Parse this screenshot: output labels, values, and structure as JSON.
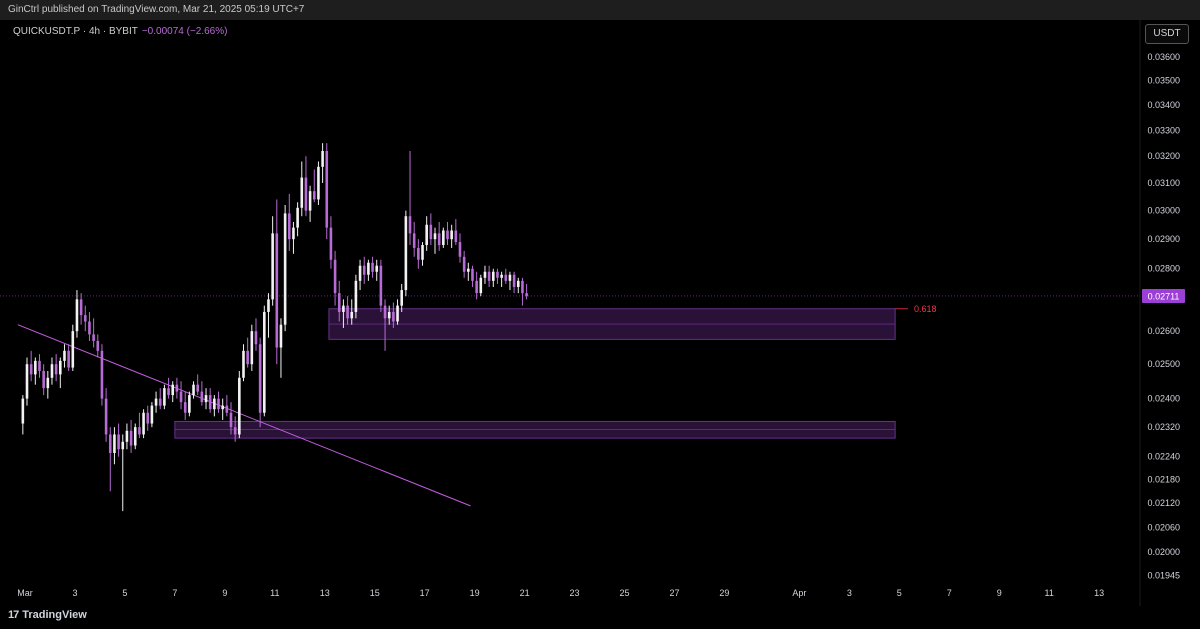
{
  "header": {
    "published_text": "GinCtrl published on TradingView.com, Mar 21, 2025 05:19 UTC+7"
  },
  "legend": {
    "symbol": "QUICKUSDT.P · 4h · BYBIT",
    "change": "−0.00074 (−2.66%)"
  },
  "currency_button": "USDT",
  "branding": {
    "logo_mark": "17",
    "logo_text": "TradingView"
  },
  "colors": {
    "background": "#000000",
    "candle_up": "#f2f2f2",
    "candle_down": "#b86bd6",
    "zone_fill": "#4a1f66",
    "trendline": "#c65ee6",
    "fib_label": "#f23645",
    "price_badge": "#9c3fd6"
  },
  "chart_data": {
    "type": "candlestick",
    "symbol": "QUICKUSDT.P",
    "interval": "4h",
    "exchange": "BYBIT",
    "last_price": "0.02711",
    "y_scale": "log",
    "ylim": [
      0.01945,
      0.0365
    ],
    "y_ticks": [
      "0.03600",
      "0.03500",
      "0.03400",
      "0.03300",
      "0.03200",
      "0.03100",
      "0.03000",
      "0.02900",
      "0.02800",
      "0.02600",
      "0.02500",
      "0.02400",
      "0.02320",
      "0.02240",
      "0.02180",
      "0.02120",
      "0.02060",
      "0.02000",
      "0.01945"
    ],
    "x_ticks": [
      {
        "label": "Mar",
        "date": "2025-03-01"
      },
      {
        "label": "3",
        "date": "2025-03-03"
      },
      {
        "label": "5",
        "date": "2025-03-05"
      },
      {
        "label": "7",
        "date": "2025-03-07"
      },
      {
        "label": "9",
        "date": "2025-03-09"
      },
      {
        "label": "11",
        "date": "2025-03-11"
      },
      {
        "label": "13",
        "date": "2025-03-13"
      },
      {
        "label": "15",
        "date": "2025-03-15"
      },
      {
        "label": "17",
        "date": "2025-03-17"
      },
      {
        "label": "19",
        "date": "2025-03-19"
      },
      {
        "label": "21",
        "date": "2025-03-21"
      },
      {
        "label": "23",
        "date": "2025-03-23"
      },
      {
        "label": "25",
        "date": "2025-03-25"
      },
      {
        "label": "27",
        "date": "2025-03-27"
      },
      {
        "label": "29",
        "date": "2025-03-29"
      },
      {
        "label": "Apr",
        "date": "2025-04-01"
      },
      {
        "label": "3",
        "date": "2025-04-03"
      },
      {
        "label": "5",
        "date": "2025-04-05"
      },
      {
        "label": "7",
        "date": "2025-04-07"
      },
      {
        "label": "9",
        "date": "2025-04-09"
      },
      {
        "label": "11",
        "date": "2025-04-11"
      },
      {
        "label": "13",
        "date": "2025-04-13"
      }
    ],
    "candles": [
      {
        "x": "2025-02-28 20:00",
        "o": 0.0233,
        "h": 0.0241,
        "l": 0.023,
        "c": 0.024
      },
      {
        "x": "2025-03-01 00:00",
        "o": 0.024,
        "h": 0.0252,
        "l": 0.0238,
        "c": 0.025
      },
      {
        "x": "2025-03-01 04:00",
        "o": 0.025,
        "h": 0.0254,
        "l": 0.0245,
        "c": 0.0247
      },
      {
        "x": "2025-03-01 08:00",
        "o": 0.0247,
        "h": 0.0252,
        "l": 0.0244,
        "c": 0.0251
      },
      {
        "x": "2025-03-01 12:00",
        "o": 0.0251,
        "h": 0.0253,
        "l": 0.0246,
        "c": 0.0248
      },
      {
        "x": "2025-03-01 16:00",
        "o": 0.0248,
        "h": 0.025,
        "l": 0.0241,
        "c": 0.0243
      },
      {
        "x": "2025-03-01 20:00",
        "o": 0.0243,
        "h": 0.0248,
        "l": 0.024,
        "c": 0.0246
      },
      {
        "x": "2025-03-02 00:00",
        "o": 0.0246,
        "h": 0.0252,
        "l": 0.0244,
        "c": 0.025
      },
      {
        "x": "2025-03-02 04:00",
        "o": 0.025,
        "h": 0.0253,
        "l": 0.0245,
        "c": 0.0247
      },
      {
        "x": "2025-03-02 08:00",
        "o": 0.0247,
        "h": 0.0252,
        "l": 0.0243,
        "c": 0.0251
      },
      {
        "x": "2025-03-02 12:00",
        "o": 0.0251,
        "h": 0.0256,
        "l": 0.0249,
        "c": 0.0254
      },
      {
        "x": "2025-03-02 16:00",
        "o": 0.0254,
        "h": 0.0256,
        "l": 0.0248,
        "c": 0.0249
      },
      {
        "x": "2025-03-02 20:00",
        "o": 0.0249,
        "h": 0.0262,
        "l": 0.0248,
        "c": 0.026
      },
      {
        "x": "2025-03-03 00:00",
        "o": 0.026,
        "h": 0.0273,
        "l": 0.0258,
        "c": 0.027
      },
      {
        "x": "2025-03-03 04:00",
        "o": 0.027,
        "h": 0.0272,
        "l": 0.0262,
        "c": 0.0265
      },
      {
        "x": "2025-03-03 08:00",
        "o": 0.0265,
        "h": 0.0268,
        "l": 0.026,
        "c": 0.0263
      },
      {
        "x": "2025-03-03 12:00",
        "o": 0.0263,
        "h": 0.0266,
        "l": 0.0257,
        "c": 0.0259
      },
      {
        "x": "2025-03-03 16:00",
        "o": 0.0259,
        "h": 0.0264,
        "l": 0.0255,
        "c": 0.0257
      },
      {
        "x": "2025-03-03 20:00",
        "o": 0.0257,
        "h": 0.0259,
        "l": 0.0252,
        "c": 0.0254
      },
      {
        "x": "2025-03-04 00:00",
        "o": 0.0254,
        "h": 0.0256,
        "l": 0.0238,
        "c": 0.024
      },
      {
        "x": "2025-03-04 04:00",
        "o": 0.024,
        "h": 0.0243,
        "l": 0.0228,
        "c": 0.023
      },
      {
        "x": "2025-03-04 08:00",
        "o": 0.023,
        "h": 0.0232,
        "l": 0.0215,
        "c": 0.0225
      },
      {
        "x": "2025-03-04 12:00",
        "o": 0.0225,
        "h": 0.0232,
        "l": 0.0222,
        "c": 0.023
      },
      {
        "x": "2025-03-04 16:00",
        "o": 0.023,
        "h": 0.0233,
        "l": 0.0224,
        "c": 0.0226
      },
      {
        "x": "2025-03-04 20:00",
        "o": 0.0226,
        "h": 0.023,
        "l": 0.021,
        "c": 0.0228
      },
      {
        "x": "2025-03-05 00:00",
        "o": 0.0228,
        "h": 0.0233,
        "l": 0.0226,
        "c": 0.0231
      },
      {
        "x": "2025-03-05 04:00",
        "o": 0.0231,
        "h": 0.0234,
        "l": 0.0225,
        "c": 0.0227
      },
      {
        "x": "2025-03-05 08:00",
        "o": 0.0227,
        "h": 0.0233,
        "l": 0.0226,
        "c": 0.0232
      },
      {
        "x": "2025-03-05 12:00",
        "o": 0.0232,
        "h": 0.0236,
        "l": 0.0229,
        "c": 0.023
      },
      {
        "x": "2025-03-05 16:00",
        "o": 0.023,
        "h": 0.0237,
        "l": 0.0229,
        "c": 0.0236
      },
      {
        "x": "2025-03-05 20:00",
        "o": 0.0236,
        "h": 0.0238,
        "l": 0.0231,
        "c": 0.0233
      },
      {
        "x": "2025-03-06 00:00",
        "o": 0.0233,
        "h": 0.0239,
        "l": 0.0232,
        "c": 0.0238
      },
      {
        "x": "2025-03-06 04:00",
        "o": 0.0238,
        "h": 0.0242,
        "l": 0.0236,
        "c": 0.024
      },
      {
        "x": "2025-03-06 08:00",
        "o": 0.024,
        "h": 0.0243,
        "l": 0.0237,
        "c": 0.0238
      },
      {
        "x": "2025-03-06 12:00",
        "o": 0.0238,
        "h": 0.0244,
        "l": 0.0237,
        "c": 0.0243
      },
      {
        "x": "2025-03-06 16:00",
        "o": 0.0243,
        "h": 0.0246,
        "l": 0.024,
        "c": 0.0241
      },
      {
        "x": "2025-03-06 20:00",
        "o": 0.0241,
        "h": 0.0245,
        "l": 0.0239,
        "c": 0.0244
      },
      {
        "x": "2025-03-07 00:00",
        "o": 0.0244,
        "h": 0.0246,
        "l": 0.024,
        "c": 0.0242
      },
      {
        "x": "2025-03-07 04:00",
        "o": 0.0242,
        "h": 0.0245,
        "l": 0.0237,
        "c": 0.0239
      },
      {
        "x": "2025-03-07 08:00",
        "o": 0.0239,
        "h": 0.0242,
        "l": 0.0234,
        "c": 0.0236
      },
      {
        "x": "2025-03-07 12:00",
        "o": 0.0236,
        "h": 0.0242,
        "l": 0.0235,
        "c": 0.0241
      },
      {
        "x": "2025-03-07 16:00",
        "o": 0.0241,
        "h": 0.0245,
        "l": 0.024,
        "c": 0.0244
      },
      {
        "x": "2025-03-07 20:00",
        "o": 0.0244,
        "h": 0.0247,
        "l": 0.0241,
        "c": 0.0242
      },
      {
        "x": "2025-03-08 00:00",
        "o": 0.0242,
        "h": 0.0245,
        "l": 0.0238,
        "c": 0.0239
      },
      {
        "x": "2025-03-08 04:00",
        "o": 0.0239,
        "h": 0.0243,
        "l": 0.0237,
        "c": 0.0241
      },
      {
        "x": "2025-03-08 08:00",
        "o": 0.0241,
        "h": 0.0243,
        "l": 0.0236,
        "c": 0.0237
      },
      {
        "x": "2025-03-08 12:00",
        "o": 0.0237,
        "h": 0.0241,
        "l": 0.0235,
        "c": 0.024
      },
      {
        "x": "2025-03-08 16:00",
        "o": 0.024,
        "h": 0.0242,
        "l": 0.0236,
        "c": 0.0237
      },
      {
        "x": "2025-03-08 20:00",
        "o": 0.0237,
        "h": 0.024,
        "l": 0.0234,
        "c": 0.0238
      },
      {
        "x": "2025-03-09 00:00",
        "o": 0.0238,
        "h": 0.0241,
        "l": 0.0235,
        "c": 0.0236
      },
      {
        "x": "2025-03-09 04:00",
        "o": 0.0236,
        "h": 0.0239,
        "l": 0.023,
        "c": 0.0232
      },
      {
        "x": "2025-03-09 08:00",
        "o": 0.0232,
        "h": 0.0235,
        "l": 0.0228,
        "c": 0.023
      },
      {
        "x": "2025-03-09 12:00",
        "o": 0.023,
        "h": 0.0248,
        "l": 0.0229,
        "c": 0.0246
      },
      {
        "x": "2025-03-09 16:00",
        "o": 0.0246,
        "h": 0.0256,
        "l": 0.0245,
        "c": 0.0254
      },
      {
        "x": "2025-03-09 20:00",
        "o": 0.0254,
        "h": 0.0258,
        "l": 0.0249,
        "c": 0.025
      },
      {
        "x": "2025-03-10 00:00",
        "o": 0.025,
        "h": 0.0262,
        "l": 0.0248,
        "c": 0.026
      },
      {
        "x": "2025-03-10 04:00",
        "o": 0.026,
        "h": 0.0264,
        "l": 0.0254,
        "c": 0.0256
      },
      {
        "x": "2025-03-10 08:00",
        "o": 0.0256,
        "h": 0.0258,
        "l": 0.0232,
        "c": 0.0236
      },
      {
        "x": "2025-03-10 12:00",
        "o": 0.0236,
        "h": 0.0268,
        "l": 0.0235,
        "c": 0.0266
      },
      {
        "x": "2025-03-10 16:00",
        "o": 0.0266,
        "h": 0.0272,
        "l": 0.0258,
        "c": 0.027
      },
      {
        "x": "2025-03-10 20:00",
        "o": 0.027,
        "h": 0.0298,
        "l": 0.0268,
        "c": 0.0292
      },
      {
        "x": "2025-03-11 00:00",
        "o": 0.0292,
        "h": 0.0304,
        "l": 0.025,
        "c": 0.0255
      },
      {
        "x": "2025-03-11 04:00",
        "o": 0.0255,
        "h": 0.0264,
        "l": 0.0246,
        "c": 0.0262
      },
      {
        "x": "2025-03-11 08:00",
        "o": 0.0262,
        "h": 0.0302,
        "l": 0.026,
        "c": 0.0299
      },
      {
        "x": "2025-03-11 12:00",
        "o": 0.0299,
        "h": 0.0306,
        "l": 0.0286,
        "c": 0.029
      },
      {
        "x": "2025-03-11 16:00",
        "o": 0.029,
        "h": 0.0296,
        "l": 0.0285,
        "c": 0.0294
      },
      {
        "x": "2025-03-11 20:00",
        "o": 0.0294,
        "h": 0.0303,
        "l": 0.0291,
        "c": 0.0301
      },
      {
        "x": "2025-03-12 00:00",
        "o": 0.0301,
        "h": 0.0318,
        "l": 0.0298,
        "c": 0.0312
      },
      {
        "x": "2025-03-12 04:00",
        "o": 0.0312,
        "h": 0.032,
        "l": 0.0298,
        "c": 0.03
      },
      {
        "x": "2025-03-12 08:00",
        "o": 0.03,
        "h": 0.0309,
        "l": 0.0296,
        "c": 0.0307
      },
      {
        "x": "2025-03-12 12:00",
        "o": 0.0307,
        "h": 0.0315,
        "l": 0.0303,
        "c": 0.0304
      },
      {
        "x": "2025-03-12 16:00",
        "o": 0.0304,
        "h": 0.0318,
        "l": 0.0302,
        "c": 0.0316
      },
      {
        "x": "2025-03-12 20:00",
        "o": 0.0316,
        "h": 0.0325,
        "l": 0.031,
        "c": 0.0322
      },
      {
        "x": "2025-03-13 00:00",
        "o": 0.0322,
        "h": 0.0325,
        "l": 0.029,
        "c": 0.0294
      },
      {
        "x": "2025-03-13 04:00",
        "o": 0.0294,
        "h": 0.0298,
        "l": 0.028,
        "c": 0.0283
      },
      {
        "x": "2025-03-13 08:00",
        "o": 0.0283,
        "h": 0.0286,
        "l": 0.0268,
        "c": 0.0272
      },
      {
        "x": "2025-03-13 12:00",
        "o": 0.0272,
        "h": 0.0276,
        "l": 0.0263,
        "c": 0.0266
      },
      {
        "x": "2025-03-13 16:00",
        "o": 0.0266,
        "h": 0.027,
        "l": 0.0261,
        "c": 0.0268
      },
      {
        "x": "2025-03-13 20:00",
        "o": 0.0268,
        "h": 0.0271,
        "l": 0.0262,
        "c": 0.0264
      },
      {
        "x": "2025-03-14 00:00",
        "o": 0.0264,
        "h": 0.027,
        "l": 0.0262,
        "c": 0.0266
      },
      {
        "x": "2025-03-14 04:00",
        "o": 0.0266,
        "h": 0.0278,
        "l": 0.0264,
        "c": 0.0276
      },
      {
        "x": "2025-03-14 08:00",
        "o": 0.0276,
        "h": 0.0283,
        "l": 0.0273,
        "c": 0.0281
      },
      {
        "x": "2025-03-14 12:00",
        "o": 0.0281,
        "h": 0.0284,
        "l": 0.0275,
        "c": 0.0278
      },
      {
        "x": "2025-03-14 16:00",
        "o": 0.0278,
        "h": 0.0283,
        "l": 0.0276,
        "c": 0.0282
      },
      {
        "x": "2025-03-14 20:00",
        "o": 0.0282,
        "h": 0.0284,
        "l": 0.0277,
        "c": 0.0279
      },
      {
        "x": "2025-03-15 00:00",
        "o": 0.0279,
        "h": 0.0283,
        "l": 0.0276,
        "c": 0.0281
      },
      {
        "x": "2025-03-15 04:00",
        "o": 0.0281,
        "h": 0.0283,
        "l": 0.0266,
        "c": 0.0268
      },
      {
        "x": "2025-03-15 08:00",
        "o": 0.0268,
        "h": 0.027,
        "l": 0.0254,
        "c": 0.0264
      },
      {
        "x": "2025-03-15 12:00",
        "o": 0.0264,
        "h": 0.0268,
        "l": 0.0262,
        "c": 0.0266
      },
      {
        "x": "2025-03-15 16:00",
        "o": 0.0266,
        "h": 0.0269,
        "l": 0.0261,
        "c": 0.0263
      },
      {
        "x": "2025-03-15 20:00",
        "o": 0.0263,
        "h": 0.027,
        "l": 0.0262,
        "c": 0.0268
      },
      {
        "x": "2025-03-16 00:00",
        "o": 0.0268,
        "h": 0.0275,
        "l": 0.0266,
        "c": 0.0273
      },
      {
        "x": "2025-03-16 04:00",
        "o": 0.0273,
        "h": 0.03,
        "l": 0.0271,
        "c": 0.0298
      },
      {
        "x": "2025-03-16 08:00",
        "o": 0.0298,
        "h": 0.0322,
        "l": 0.0288,
        "c": 0.0292
      },
      {
        "x": "2025-03-16 12:00",
        "o": 0.0292,
        "h": 0.0296,
        "l": 0.0284,
        "c": 0.0287
      },
      {
        "x": "2025-03-16 16:00",
        "o": 0.0287,
        "h": 0.029,
        "l": 0.028,
        "c": 0.0283
      },
      {
        "x": "2025-03-16 20:00",
        "o": 0.0283,
        "h": 0.0289,
        "l": 0.0281,
        "c": 0.0288
      },
      {
        "x": "2025-03-17 00:00",
        "o": 0.0288,
        "h": 0.0298,
        "l": 0.0286,
        "c": 0.0295
      },
      {
        "x": "2025-03-17 04:00",
        "o": 0.0295,
        "h": 0.0299,
        "l": 0.0288,
        "c": 0.029
      },
      {
        "x": "2025-03-17 08:00",
        "o": 0.029,
        "h": 0.0294,
        "l": 0.0285,
        "c": 0.0292
      },
      {
        "x": "2025-03-17 12:00",
        "o": 0.0292,
        "h": 0.0296,
        "l": 0.0286,
        "c": 0.0288
      },
      {
        "x": "2025-03-17 16:00",
        "o": 0.0288,
        "h": 0.0294,
        "l": 0.0287,
        "c": 0.0293
      },
      {
        "x": "2025-03-17 20:00",
        "o": 0.0293,
        "h": 0.0296,
        "l": 0.0288,
        "c": 0.029
      },
      {
        "x": "2025-03-18 00:00",
        "o": 0.029,
        "h": 0.0295,
        "l": 0.0287,
        "c": 0.0293
      },
      {
        "x": "2025-03-18 04:00",
        "o": 0.0293,
        "h": 0.0297,
        "l": 0.0288,
        "c": 0.0289
      },
      {
        "x": "2025-03-18 08:00",
        "o": 0.0289,
        "h": 0.0292,
        "l": 0.0282,
        "c": 0.0284
      },
      {
        "x": "2025-03-18 12:00",
        "o": 0.0284,
        "h": 0.0286,
        "l": 0.0277,
        "c": 0.0279
      },
      {
        "x": "2025-03-18 16:00",
        "o": 0.0279,
        "h": 0.0282,
        "l": 0.0276,
        "c": 0.028
      },
      {
        "x": "2025-03-18 20:00",
        "o": 0.028,
        "h": 0.0281,
        "l": 0.0274,
        "c": 0.0276
      },
      {
        "x": "2025-03-19 00:00",
        "o": 0.0276,
        "h": 0.0279,
        "l": 0.027,
        "c": 0.0272
      },
      {
        "x": "2025-03-19 04:00",
        "o": 0.0272,
        "h": 0.0278,
        "l": 0.0271,
        "c": 0.0277
      },
      {
        "x": "2025-03-19 08:00",
        "o": 0.0277,
        "h": 0.0281,
        "l": 0.0275,
        "c": 0.0279
      },
      {
        "x": "2025-03-19 12:00",
        "o": 0.0279,
        "h": 0.0281,
        "l": 0.0274,
        "c": 0.0276
      },
      {
        "x": "2025-03-19 16:00",
        "o": 0.0276,
        "h": 0.028,
        "l": 0.0274,
        "c": 0.0279
      },
      {
        "x": "2025-03-19 20:00",
        "o": 0.0279,
        "h": 0.028,
        "l": 0.0275,
        "c": 0.0277
      },
      {
        "x": "2025-03-20 00:00",
        "o": 0.0277,
        "h": 0.0279,
        "l": 0.0274,
        "c": 0.0278
      },
      {
        "x": "2025-03-20 04:00",
        "o": 0.0278,
        "h": 0.028,
        "l": 0.0275,
        "c": 0.0276
      },
      {
        "x": "2025-03-20 08:00",
        "o": 0.0276,
        "h": 0.0279,
        "l": 0.0273,
        "c": 0.0278
      },
      {
        "x": "2025-03-20 12:00",
        "o": 0.0278,
        "h": 0.0279,
        "l": 0.0272,
        "c": 0.0274
      },
      {
        "x": "2025-03-20 16:00",
        "o": 0.0274,
        "h": 0.0277,
        "l": 0.0272,
        "c": 0.0276
      },
      {
        "x": "2025-03-20 20:00",
        "o": 0.0276,
        "h": 0.0277,
        "l": 0.0268,
        "c": 0.0272
      },
      {
        "x": "2025-03-21 00:00",
        "o": 0.0272,
        "h": 0.0275,
        "l": 0.027,
        "c": 0.0271
      }
    ],
    "zones": [
      {
        "name": "fib-0.618-zone",
        "from": "2025-03-13 04:00",
        "to": "2025-04-04 20:00",
        "y1": 0.0267,
        "y2": 0.02575,
        "mid": 0.02622
      },
      {
        "name": "lower-zone",
        "from": "2025-03-07 00:00",
        "to": "2025-04-04 20:00",
        "y1": 0.02336,
        "y2": 0.0229,
        "mid": 0.02313
      }
    ],
    "fib_label": {
      "text": "0.618",
      "y": 0.0267
    },
    "trendline": {
      "x1": "2025-02-28 20:00",
      "y1": 0.0262,
      "x2": "2025-03-18 20:00",
      "y2": 0.02113
    }
  }
}
